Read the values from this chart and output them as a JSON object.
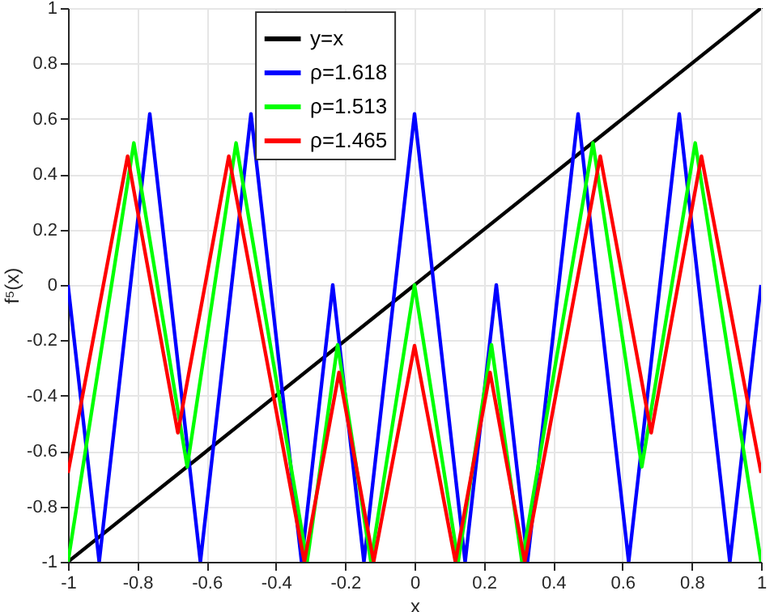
{
  "chart_data": {
    "type": "line",
    "xlabel": "x",
    "ylabel": "f⁵(x)",
    "xlim": [
      -1,
      1
    ],
    "ylim": [
      -1,
      1
    ],
    "xticks": [
      -1,
      -0.8,
      -0.6,
      -0.4,
      -0.2,
      0,
      0.2,
      0.4,
      0.6,
      0.8,
      1
    ],
    "yticks": [
      -1,
      -0.8,
      -0.6,
      -0.4,
      -0.2,
      0,
      0.2,
      0.4,
      0.6,
      0.8,
      1
    ],
    "grid": true,
    "legend": "top",
    "marker": "none",
    "line_style": "solid",
    "series": [
      {
        "name": "y=x",
        "color": "#000000",
        "x": [
          -1,
          1
        ],
        "values": [
          -1,
          1
        ]
      },
      {
        "name": "ρ=1.618",
        "color": "#0000ff",
        "x": [
          -1,
          -0.91,
          -0.764,
          -0.618,
          -0.472,
          -0.326,
          -0.236,
          -0.146,
          0,
          0.146,
          0.236,
          0.326,
          0.472,
          0.618,
          0.764,
          0.91,
          1
        ],
        "values": [
          0,
          -1,
          0.618,
          -1,
          0.618,
          -1,
          0,
          -1,
          0.618,
          -1,
          0,
          -1,
          0.618,
          -1,
          0.618,
          -1,
          0
        ]
      },
      {
        "name": "ρ=1.513",
        "color": "#00ff00",
        "x": [
          -1,
          -0.81,
          -0.656,
          -0.515,
          -0.31,
          -0.222,
          -0.126,
          0,
          0.126,
          0.222,
          0.31,
          0.515,
          0.656,
          0.81,
          1
        ],
        "values": [
          -1,
          0.513,
          -0.657,
          0.513,
          -1,
          -0.216,
          -1,
          0,
          -1,
          -0.216,
          -1,
          0.513,
          -0.657,
          0.513,
          -1
        ]
      },
      {
        "name": "ρ=1.465",
        "color": "#ff0000",
        "x": [
          -1,
          -0.828,
          -0.683,
          -0.536,
          -0.318,
          -0.218,
          -0.118,
          0,
          0.118,
          0.218,
          0.318,
          0.536,
          0.683,
          0.828,
          1
        ],
        "values": [
          -0.679,
          0.465,
          -0.534,
          0.465,
          -1,
          -0.316,
          -1,
          -0.219,
          -1,
          -0.316,
          -1,
          0.465,
          -0.534,
          0.465,
          -0.679
        ]
      }
    ]
  }
}
